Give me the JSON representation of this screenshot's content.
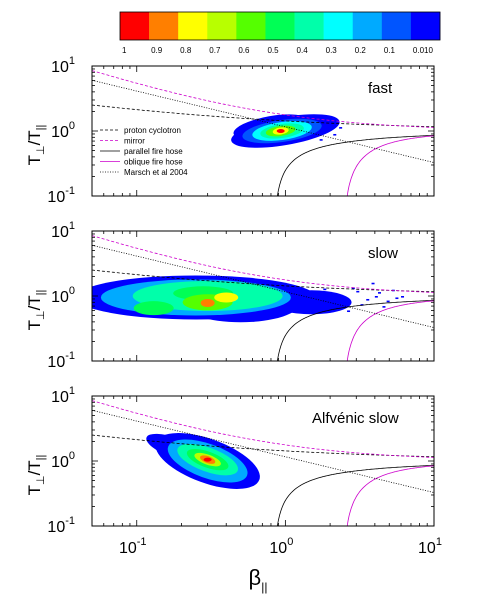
{
  "figure": {
    "panels": [
      "fast",
      "slow",
      "Alfvénic slow"
    ],
    "ylabel": "T⊥/T∥",
    "xlabel": "β∥"
  },
  "colorbar": {
    "labels": [
      "1",
      "0.9",
      "0.8",
      "0.7",
      "0.6",
      "0.5",
      "0.4",
      "0.3",
      "0.2",
      "0.1",
      "0.010"
    ],
    "colors": [
      "#ff0000",
      "#ff7f00",
      "#ffff00",
      "#b8ff00",
      "#55ff00",
      "#00ff55",
      "#00ffaa",
      "#00ffff",
      "#00aaff",
      "#0055ff",
      "#0000ff"
    ]
  },
  "legend": {
    "items": [
      {
        "label": "proton cyclotron",
        "color": "#000000",
        "dash": "3,2"
      },
      {
        "label": "mirror",
        "color": "#cc00cc",
        "dash": "3,2"
      },
      {
        "label": "parallel fire hose",
        "color": "#000000",
        "dash": "none"
      },
      {
        "label": "oblique fire hose",
        "color": "#cc00cc",
        "dash": "none"
      },
      {
        "label": "Marsch et al 2004",
        "color": "#000000",
        "dash": "1,1.5"
      }
    ]
  },
  "chart_data": [
    {
      "type": "heatmap",
      "title": "fast",
      "xlabel": "β∥",
      "ylabel": "T⊥/T∥",
      "xscale": "log",
      "yscale": "log",
      "xlim": [
        0.05,
        10
      ],
      "ylim": [
        0.1,
        10
      ],
      "x_ticks": [
        "10-1",
        "100",
        "101"
      ],
      "y_ticks": [
        "10-1",
        "100",
        "101"
      ],
      "density_peaks": [
        {
          "x": 0.95,
          "y": 1.0,
          "level": 1
        }
      ],
      "density_extent": {
        "x": [
          0.35,
          2.4
        ],
        "y": [
          0.55,
          1.7
        ]
      },
      "legend": [
        "proton cyclotron",
        "mirror",
        "parallel fire hose",
        "oblique fire hose",
        "Marsch et al 2004"
      ]
    },
    {
      "type": "heatmap",
      "title": "slow",
      "xlabel": "β∥",
      "ylabel": "T⊥/T∥",
      "xscale": "log",
      "yscale": "log",
      "xlim": [
        0.05,
        10
      ],
      "ylim": [
        0.1,
        10
      ],
      "x_ticks": [
        "10-1",
        "100",
        "101"
      ],
      "y_ticks": [
        "10-1",
        "100",
        "101"
      ],
      "density_peaks": [
        {
          "x": 0.3,
          "y": 0.9,
          "level": 0.8
        },
        {
          "x": 0.13,
          "y": 0.65,
          "level": 0.6
        },
        {
          "x": 0.28,
          "y": 1.1,
          "level": 0.6
        }
      ],
      "density_extent": {
        "x": [
          0.055,
          6.5
        ],
        "y": [
          0.3,
          2.1
        ]
      }
    },
    {
      "type": "heatmap",
      "title": "Alfvénic slow",
      "xlabel": "β∥",
      "ylabel": "T⊥/T∥",
      "xscale": "log",
      "yscale": "log",
      "xlim": [
        0.05,
        10
      ],
      "ylim": [
        0.1,
        10
      ],
      "x_ticks": [
        "10-1",
        "100",
        "101"
      ],
      "y_ticks": [
        "10-1",
        "100",
        "101"
      ],
      "density_peaks": [
        {
          "x": 0.3,
          "y": 1.1,
          "level": 1
        }
      ],
      "density_extent": {
        "x": [
          0.1,
          0.8
        ],
        "y": [
          0.25,
          2.3
        ]
      }
    }
  ]
}
